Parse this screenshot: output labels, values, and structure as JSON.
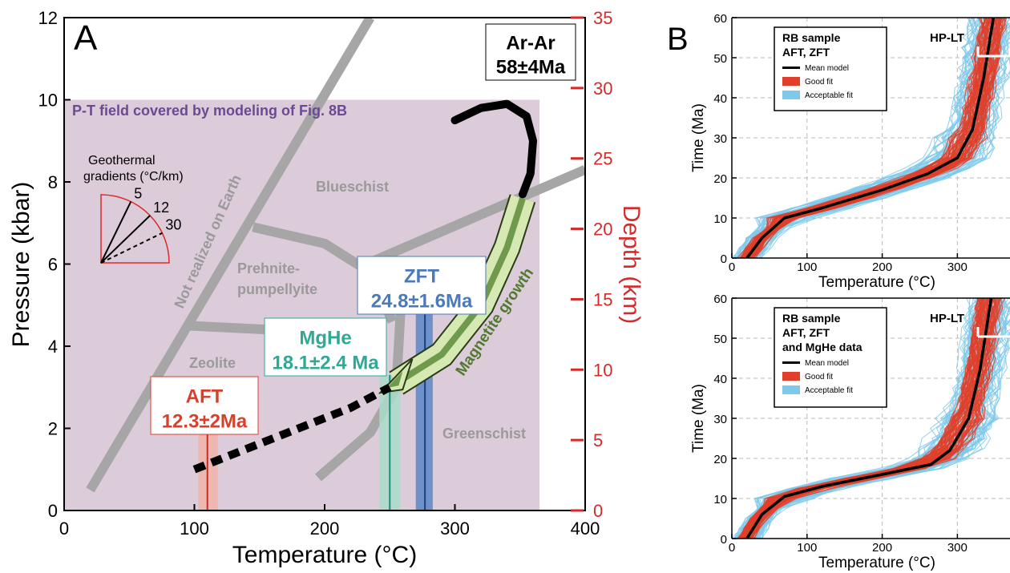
{
  "chart_data": [
    {
      "type": "line",
      "panel_label": "A",
      "xlabel": "Temperature (°C)",
      "ylabel": "Pressure (kbar)",
      "ylabel_right": "Depth (km)",
      "xlim": [
        0,
        400
      ],
      "ylim": [
        0,
        12
      ],
      "ylim_right": [
        0,
        35
      ],
      "xticks": [
        "0",
        "100",
        "200",
        "300",
        "400"
      ],
      "yticks": [
        "0",
        "2",
        "4",
        "6",
        "8",
        "10",
        "12"
      ],
      "yticks_right": [
        "0",
        "5",
        "10",
        "15",
        "20",
        "25",
        "30",
        "35"
      ],
      "field_label": "P-T field covered by modeling of Fig. 8B",
      "field_rect": {
        "x": [
          0,
          365
        ],
        "y": [
          0,
          10
        ]
      },
      "gradients": {
        "title_line1": "Geothermal",
        "title_line2": "gradients (°C/km)",
        "values": [
          "5",
          "12",
          "30"
        ]
      },
      "facies_labels": [
        "Blueschist",
        "Prehnite-",
        "pumpellyite",
        "Zeolite",
        "Greenschist",
        "Not realized on Earth"
      ],
      "facies_boundaries": [
        {
          "name": "not-realized-line",
          "x": [
            20,
            235
          ],
          "y": [
            0.5,
            12
          ]
        },
        {
          "name": "blueschist-prehnite",
          "x": [
            145,
            200,
            235,
            252
          ],
          "y": [
            6.9,
            6.5,
            5.8,
            4.6
          ]
        },
        {
          "name": "blueschist-greenschist",
          "x": [
            232,
            400
          ],
          "y": [
            6.0,
            8.3
          ]
        },
        {
          "name": "prehnite-zeolite",
          "x": [
            95,
            160,
            225
          ],
          "y": [
            4.5,
            4.4,
            4.1
          ]
        },
        {
          "name": "zeolite-greenschist",
          "x": [
            195,
            235,
            255,
            260
          ],
          "y": [
            0.8,
            1.9,
            3.0,
            5.8
          ]
        }
      ],
      "ages": [
        {
          "label": "AFT",
          "value": "12.3±2Ma",
          "color": "#d8402b",
          "bar_color": "#f2b4aa",
          "x": 110,
          "xmin": 103,
          "xmax": 118,
          "ymax": 1.9
        },
        {
          "label": "MgHe",
          "value": "18.1±2.4 Ma",
          "color": "#2fa896",
          "bar_color": "#a9dcc9",
          "x": 250,
          "xmin": 242,
          "xmax": 258,
          "ymax": 3.3
        },
        {
          "label": "ZFT",
          "value": "24.8±1.6Ma",
          "color": "#4a7ab8",
          "bar_color": "#5b87c8",
          "x": 277,
          "xmin": 270,
          "xmax": 283,
          "ymax": 4.8
        },
        {
          "label": "Ar-Ar",
          "value": "58±4Ma",
          "color": "#000000"
        }
      ],
      "path_solid": {
        "x": [
          300,
          320,
          340,
          355,
          360,
          358,
          352
        ],
        "y": [
          9.5,
          9.8,
          9.9,
          9.6,
          9.0,
          8.2,
          7.7
        ]
      },
      "path_dashed": {
        "x": [
          100,
          140,
          180,
          220,
          250
        ],
        "y": [
          1.0,
          1.5,
          2.0,
          2.5,
          3.0
        ]
      },
      "arrow_label": "Magnetite growth",
      "arrow_path": {
        "x": [
          352,
          340,
          320,
          290,
          255
        ],
        "y": [
          7.6,
          6.4,
          5.0,
          3.8,
          3.1
        ]
      }
    },
    {
      "type": "line",
      "panel_label": "B",
      "title": "RB sample",
      "subtitle": "AFT, ZFT",
      "corner_label": "HP-LT",
      "xlabel": "Temperature (°C)",
      "ylabel": "Time (Ma)",
      "xlim": [
        0,
        370
      ],
      "ylim": [
        0,
        60
      ],
      "xticks": [
        "0",
        "100",
        "200",
        "300"
      ],
      "yticks": [
        "0",
        "10",
        "20",
        "30",
        "40",
        "50",
        "60"
      ],
      "legend": [
        "Mean model",
        "Good fit",
        "Acceptable fit"
      ],
      "legend_colors": [
        "#000000",
        "#e0402a",
        "#7ec8ea"
      ],
      "series": [
        {
          "name": "Mean model",
          "x": [
            20,
            40,
            70,
            120,
            200,
            260,
            300,
            320,
            335,
            348
          ],
          "y": [
            0,
            5,
            10,
            12.5,
            17,
            21,
            25,
            32,
            45,
            60
          ]
        }
      ]
    },
    {
      "type": "line",
      "panel_label": "",
      "title": "RB sample",
      "subtitle": "AFT, ZFT",
      "subtitle2": "and MgHe data",
      "corner_label": "HP-LT",
      "xlabel": "Temperature (°C)",
      "ylabel": "Time (Ma)",
      "xlim": [
        0,
        370
      ],
      "ylim": [
        0,
        60
      ],
      "xticks": [
        "0",
        "100",
        "200",
        "300"
      ],
      "yticks": [
        "0",
        "10",
        "20",
        "30",
        "40",
        "50",
        "60"
      ],
      "legend": [
        "Mean model",
        "Good fit",
        "Acceptable fit"
      ],
      "legend_colors": [
        "#000000",
        "#e0402a",
        "#7ec8ea"
      ],
      "series": [
        {
          "name": "Mean model",
          "x": [
            20,
            40,
            70,
            120,
            200,
            265,
            290,
            315,
            330,
            345
          ],
          "y": [
            0,
            6,
            10.5,
            13,
            16,
            18.5,
            22,
            30,
            42,
            60
          ]
        }
      ]
    }
  ]
}
